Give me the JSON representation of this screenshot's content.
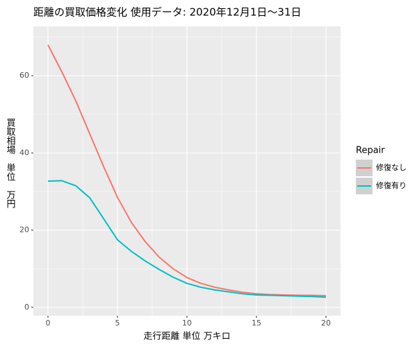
{
  "chart_data": {
    "type": "line",
    "title": "距離の買取価格変化 使用データ: 2020年12月1日～31日",
    "x_label": "走行距離 単位 万キロ",
    "y_label": "買取相場　単位　万円",
    "legend_title": "Repair",
    "x": [
      0,
      1,
      2,
      3,
      4,
      5,
      6,
      7,
      8,
      9,
      10,
      11,
      12,
      13,
      14,
      15,
      16,
      17,
      18,
      19,
      20
    ],
    "series": [
      {
        "name": "修復なし",
        "color": "#f8766d",
        "values": [
          68,
          61,
          53.5,
          45,
          36.5,
          28.5,
          22,
          17,
          13,
          10,
          7.7,
          6.2,
          5.2,
          4.5,
          3.9,
          3.5,
          3.3,
          3.2,
          3.1,
          3.1,
          3.0
        ]
      },
      {
        "name": "修復有り",
        "color": "#00bfc4",
        "values": [
          32.7,
          32.8,
          31.5,
          28.4,
          23,
          17.5,
          14.5,
          12,
          9.8,
          7.8,
          6.2,
          5.2,
          4.5,
          4,
          3.5,
          3.2,
          3.1,
          3,
          2.9,
          2.8,
          2.6
        ]
      }
    ],
    "xlim": [
      -1.05,
      21.05
    ],
    "xticks": [
      0,
      5,
      10,
      15,
      20
    ],
    "ylim": [
      -2.2,
      72.8
    ],
    "yticks": [
      0,
      20,
      40,
      60
    ],
    "grid": true,
    "legend": "right"
  }
}
